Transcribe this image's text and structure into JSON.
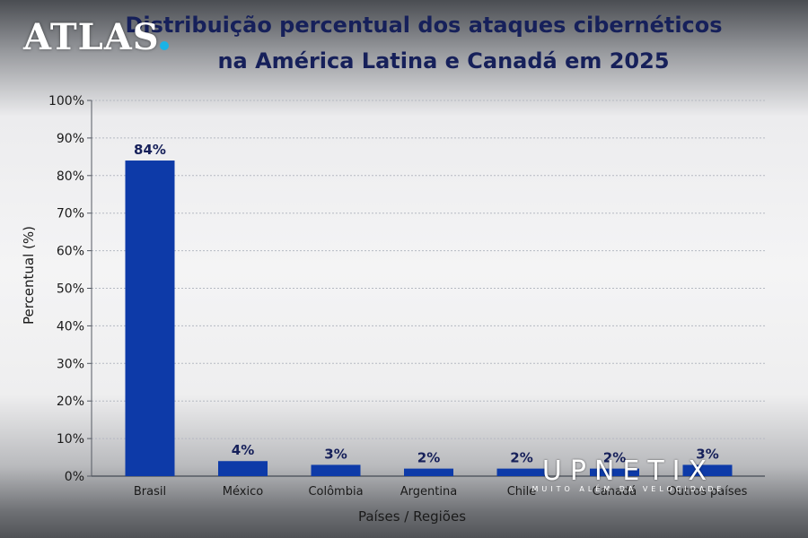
{
  "title_line1": "Distribuição percentual dos ataques cibernéticos",
  "title_line2": "na América Latina e Canadá em 2025",
  "logos": {
    "atlas": "ATLAS",
    "upnetix": "UPNETIX",
    "upnetix_tagline": "MUITO ALÉM DA VELOCIDADE"
  },
  "colors": {
    "bar": "#0d3aa8",
    "title": "#16205a",
    "grid": "#b5b9c2",
    "text": "#1a1a1a"
  },
  "chart_data": {
    "type": "bar",
    "title": "Distribuição percentual dos ataques cibernéticos na América Latina e Canadá em 2025",
    "xlabel": "Países / Regiões",
    "ylabel": "Percentual (%)",
    "categories": [
      "Brasil",
      "México",
      "Colômbia",
      "Argentina",
      "Chile",
      "Canadá",
      "Outros países"
    ],
    "values": [
      84,
      4,
      3,
      2,
      2,
      2,
      3
    ],
    "value_labels": [
      "84%",
      "4%",
      "3%",
      "2%",
      "2%",
      "2%",
      "3%"
    ],
    "ylim": [
      0,
      100
    ],
    "yticks": [
      0,
      10,
      20,
      30,
      40,
      50,
      60,
      70,
      80,
      90,
      100
    ],
    "ytick_labels": [
      "0%",
      "10%",
      "20%",
      "30%",
      "40%",
      "50%",
      "60%",
      "70%",
      "80%",
      "90%",
      "100%"
    ],
    "grid": true,
    "legend": "none"
  }
}
